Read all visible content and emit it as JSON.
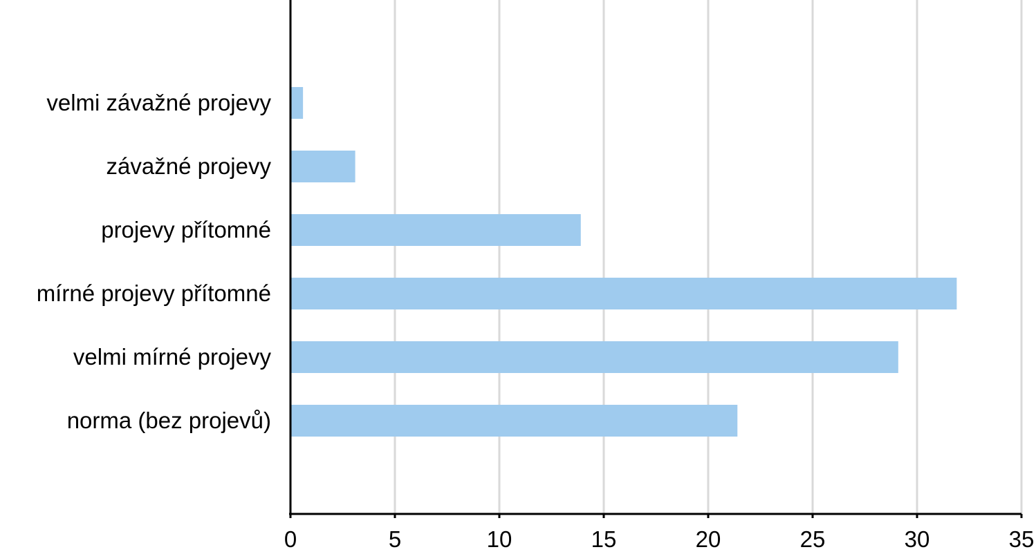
{
  "chart_data": {
    "type": "bar",
    "orientation": "horizontal",
    "title": "",
    "xlabel": "",
    "ylabel": "",
    "categories": [
      "velmi závažné projevy",
      "závažné projevy",
      "projevy přítomné",
      "mírné projevy přítomné",
      "velmi mírné projevy",
      "norma (bez projevů)"
    ],
    "values": [
      0.6,
      3.1,
      13.9,
      31.9,
      29.1,
      21.4
    ],
    "xlim": [
      0,
      35
    ],
    "xticks": [
      "0",
      "5",
      "10",
      "15",
      "20",
      "25",
      "30",
      "35"
    ],
    "grid": "vertical",
    "legend": "none",
    "bar_color": "#9fcbee",
    "grid_color": "#d9d9d9",
    "axis_color": "#000000"
  }
}
